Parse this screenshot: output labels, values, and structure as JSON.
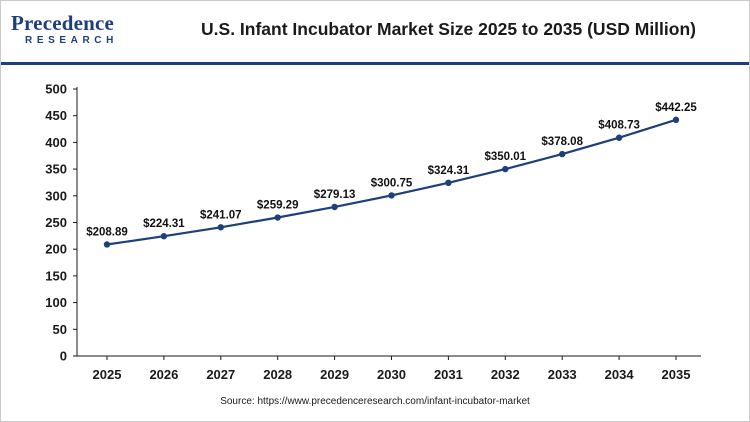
{
  "header": {
    "logo_main": "Precedence",
    "logo_sub": "RESEARCH",
    "title": "U.S. Infant Incubator Market Size 2025 to 2035 (USD Million)"
  },
  "colors": {
    "brand": "#1d3f7c",
    "line": "#1d3f7c",
    "axis": "#1a1a1a"
  },
  "chart_data": {
    "type": "line",
    "title": "U.S. Infant Incubator Market Size 2025 to 2035 (USD Million)",
    "xlabel": "",
    "ylabel": "",
    "categories": [
      "2025",
      "2026",
      "2027",
      "2028",
      "2029",
      "2030",
      "2031",
      "2032",
      "2033",
      "2034",
      "2035"
    ],
    "series": [
      {
        "values": [
          208.89,
          224.31,
          241.07,
          259.29,
          279.13,
          300.75,
          324.31,
          350.01,
          378.08,
          408.73,
          442.25
        ],
        "labels": [
          "$208.89",
          "$224.31",
          "$241.07",
          "$259.29",
          "$279.13",
          "$300.75",
          "$324.31",
          "$350.01",
          "$378.08",
          "$408.73",
          "$442.25"
        ]
      }
    ],
    "ylim": [
      0,
      500
    ],
    "yticks": [
      0,
      50,
      100,
      150,
      200,
      250,
      300,
      350,
      400,
      450,
      500
    ],
    "grid": false,
    "legend": "none"
  },
  "source": "Source: https://www.precedenceresearch.com/infant-incubator-market"
}
